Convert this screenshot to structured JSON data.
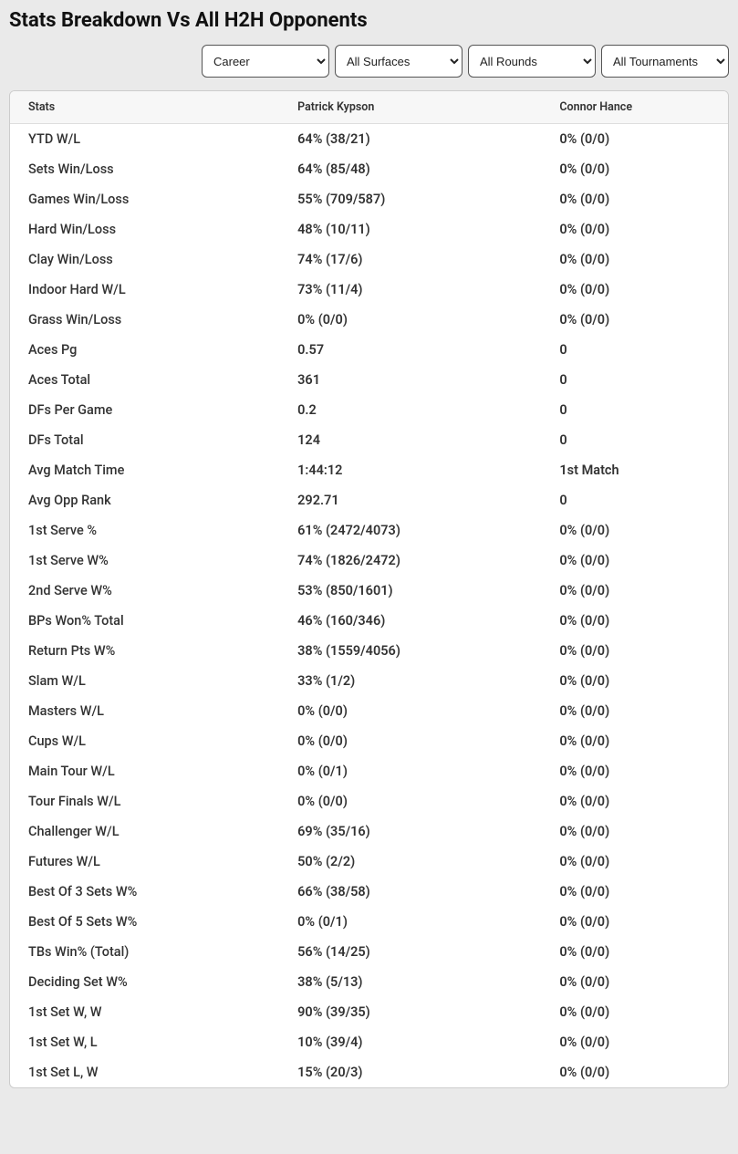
{
  "title": "Stats Breakdown Vs All H2H Opponents",
  "filters": {
    "period": {
      "selected": "Career",
      "options": [
        "Career"
      ]
    },
    "surface": {
      "selected": "All Surfaces",
      "options": [
        "All Surfaces"
      ]
    },
    "round": {
      "selected": "All Rounds",
      "options": [
        "All Rounds"
      ]
    },
    "tourn": {
      "selected": "All Tournaments",
      "options": [
        "All Tournaments"
      ]
    }
  },
  "columns": [
    "Stats",
    "Patrick Kypson",
    "Connor Hance"
  ],
  "rows": [
    [
      "YTD W/L",
      "64% (38/21)",
      "0% (0/0)"
    ],
    [
      "Sets Win/Loss",
      "64% (85/48)",
      "0% (0/0)"
    ],
    [
      "Games Win/Loss",
      "55% (709/587)",
      "0% (0/0)"
    ],
    [
      "Hard Win/Loss",
      "48% (10/11)",
      "0% (0/0)"
    ],
    [
      "Clay Win/Loss",
      "74% (17/6)",
      "0% (0/0)"
    ],
    [
      "Indoor Hard W/L",
      "73% (11/4)",
      "0% (0/0)"
    ],
    [
      "Grass Win/Loss",
      "0% (0/0)",
      "0% (0/0)"
    ],
    [
      "Aces Pg",
      "0.57",
      "0"
    ],
    [
      "Aces Total",
      "361",
      "0"
    ],
    [
      "DFs Per Game",
      "0.2",
      "0"
    ],
    [
      "DFs Total",
      "124",
      "0"
    ],
    [
      "Avg Match Time",
      "1:44:12",
      "1st Match"
    ],
    [
      "Avg Opp Rank",
      "292.71",
      "0"
    ],
    [
      "1st Serve %",
      "61% (2472/4073)",
      "0% (0/0)"
    ],
    [
      "1st Serve W%",
      "74% (1826/2472)",
      "0% (0/0)"
    ],
    [
      "2nd Serve W%",
      "53% (850/1601)",
      "0% (0/0)"
    ],
    [
      "BPs Won% Total",
      "46% (160/346)",
      "0% (0/0)"
    ],
    [
      "Return Pts W%",
      "38% (1559/4056)",
      "0% (0/0)"
    ],
    [
      "Slam W/L",
      "33% (1/2)",
      "0% (0/0)"
    ],
    [
      "Masters W/L",
      "0% (0/0)",
      "0% (0/0)"
    ],
    [
      "Cups W/L",
      "0% (0/0)",
      "0% (0/0)"
    ],
    [
      "Main Tour W/L",
      "0% (0/1)",
      "0% (0/0)"
    ],
    [
      "Tour Finals W/L",
      "0% (0/0)",
      "0% (0/0)"
    ],
    [
      "Challenger W/L",
      "69% (35/16)",
      "0% (0/0)"
    ],
    [
      "Futures W/L",
      "50% (2/2)",
      "0% (0/0)"
    ],
    [
      "Best Of 3 Sets W%",
      "66% (38/58)",
      "0% (0/0)"
    ],
    [
      "Best Of 5 Sets W%",
      "0% (0/1)",
      "0% (0/0)"
    ],
    [
      "TBs Win% (Total)",
      "56% (14/25)",
      "0% (0/0)"
    ],
    [
      "Deciding Set W%",
      "38% (5/13)",
      "0% (0/0)"
    ],
    [
      "1st Set W, W",
      "90% (39/35)",
      "0% (0/0)"
    ],
    [
      "1st Set W, L",
      "10% (39/4)",
      "0% (0/0)"
    ],
    [
      "1st Set L, W",
      "15% (20/3)",
      "0% (0/0)"
    ]
  ],
  "colors": {
    "page_bg": "#eaeaea",
    "card_bg": "#ffffff",
    "card_border": "#cccccc",
    "thead_bg": "#f7f7f7",
    "thead_border": "#dddddd",
    "text": "#333333",
    "select_border": "#555555"
  }
}
